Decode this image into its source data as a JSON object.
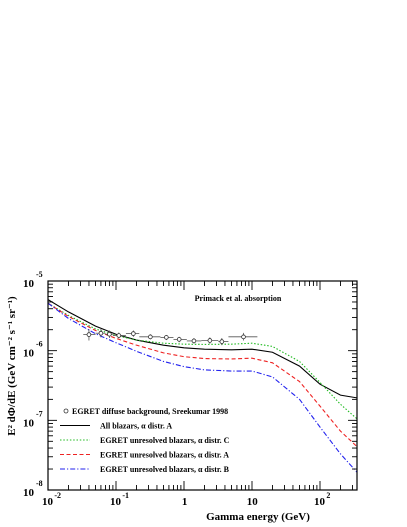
{
  "chart_data": {
    "type": "line",
    "title": "",
    "xlabel": "Gamma energy (GeV)",
    "ylabel": "E² dΦ/dE (GeV cm⁻² s⁻¹ sr⁻¹)",
    "xscale": "log",
    "yscale": "log",
    "xlim": [
      0.01,
      350
    ],
    "ylim": [
      1e-08,
      1e-05
    ],
    "annotation": "Primack et al. absorption",
    "x_ticks": [
      {
        "base": "10",
        "exp": "-2",
        "value": 0.01
      },
      {
        "base": "10",
        "exp": "-1",
        "value": 0.1
      },
      {
        "base": "1",
        "exp": "",
        "value": 1
      },
      {
        "base": "10",
        "exp": "",
        "value": 10
      },
      {
        "base": "10",
        "exp": "2",
        "value": 100
      }
    ],
    "y_ticks": [
      {
        "base": "10",
        "exp": "-8",
        "value": 1e-08
      },
      {
        "base": "10",
        "exp": "-7",
        "value": 1e-07
      },
      {
        "base": "10",
        "exp": "-6",
        "value": 1e-06
      },
      {
        "base": "10",
        "exp": "-5",
        "value": 1e-05
      }
    ],
    "egret": {
      "name": "EGRET diffuse background, Sreekumar 1998",
      "points": [
        {
          "x": 0.04,
          "y": 1.7e-06,
          "xerr": [
            0.033,
            0.05
          ],
          "yerr": [
            1.4e-06,
            2.05e-06
          ]
        },
        {
          "x": 0.06,
          "y": 1.78e-06,
          "xerr": [
            0.05,
            0.07
          ],
          "yerr": [
            1.55e-06,
            2.05e-06
          ]
        },
        {
          "x": 0.08,
          "y": 1.72e-06,
          "xerr": [
            0.07,
            0.09
          ],
          "yerr": [
            1.52e-06,
            1.95e-06
          ]
        },
        {
          "x": 0.11,
          "y": 1.65e-06,
          "xerr": [
            0.09,
            0.14
          ],
          "yerr": [
            1.5e-06,
            1.82e-06
          ]
        },
        {
          "x": 0.18,
          "y": 1.76e-06,
          "xerr": [
            0.14,
            0.22
          ],
          "yerr": [
            1.58e-06,
            1.95e-06
          ]
        },
        {
          "x": 0.32,
          "y": 1.58e-06,
          "xerr": [
            0.22,
            0.45
          ],
          "yerr": [
            1.45e-06,
            1.72e-06
          ]
        },
        {
          "x": 0.55,
          "y": 1.55e-06,
          "xerr": [
            0.45,
            0.7
          ],
          "yerr": [
            1.42e-06,
            1.68e-06
          ]
        },
        {
          "x": 0.85,
          "y": 1.45e-06,
          "xerr": [
            0.7,
            1.1
          ],
          "yerr": [
            1.32e-06,
            1.58e-06
          ]
        },
        {
          "x": 1.4,
          "y": 1.38e-06,
          "xerr": [
            1.1,
            1.8
          ],
          "yerr": [
            1.26e-06,
            1.52e-06
          ]
        },
        {
          "x": 2.4,
          "y": 1.4e-06,
          "xerr": [
            1.8,
            3.2
          ],
          "yerr": [
            1.26e-06,
            1.55e-06
          ]
        },
        {
          "x": 3.6,
          "y": 1.35e-06,
          "xerr": [
            3.2,
            4.5
          ],
          "yerr": [
            1.2e-06,
            1.52e-06
          ]
        },
        {
          "x": 7.5,
          "y": 1.58e-06,
          "xerr": [
            4.5,
            12.0
          ],
          "yerr": [
            1.4e-06,
            1.8e-06
          ]
        }
      ]
    },
    "series": [
      {
        "name": "All blazars, α distr. A",
        "color": "#000000",
        "dash": "solid",
        "x": [
          0.01,
          0.02,
          0.05,
          0.1,
          0.2,
          0.5,
          1,
          2,
          5,
          10,
          20,
          50,
          100,
          200,
          350
        ],
        "y": [
          5.4e-06,
          3.6e-06,
          2.25e-06,
          1.72e-06,
          1.42e-06,
          1.2e-06,
          1.1e-06,
          1.05e-06,
          1.03e-06,
          1.05e-06,
          9.5e-07,
          6e-07,
          3.3e-07,
          2.3e-07,
          2.1e-07
        ]
      },
      {
        "name": "EGRET unresolved blazars, α distr. C",
        "color": "#22bb22",
        "dash": "dotted",
        "x": [
          0.01,
          0.02,
          0.05,
          0.1,
          0.2,
          0.5,
          1,
          2,
          5,
          10,
          20,
          50,
          100,
          200,
          350
        ],
        "y": [
          4.8e-06,
          3.2e-06,
          2.05e-06,
          1.65e-06,
          1.42e-06,
          1.28e-06,
          1.24e-06,
          1.23e-06,
          1.24e-06,
          1.28e-06,
          1.15e-06,
          7e-07,
          3.5e-07,
          1.7e-07,
          1.05e-07
        ]
      },
      {
        "name": "EGRET unresolved blazars, α distr. A",
        "color": "#ee2222",
        "dash": "dashed",
        "x": [
          0.01,
          0.02,
          0.05,
          0.1,
          0.2,
          0.5,
          1,
          2,
          5,
          10,
          20,
          50,
          100,
          200,
          350
        ],
        "y": [
          4.8e-06,
          3.1e-06,
          1.95e-06,
          1.5e-06,
          1.2e-06,
          9.3e-07,
          8.2e-07,
          7.7e-07,
          7.6e-07,
          7.8e-07,
          6.7e-07,
          3.6e-07,
          1.6e-07,
          7e-08,
          4.2e-08
        ]
      },
      {
        "name": "EGRET unresolved blazars, α distr. B",
        "color": "#2222ee",
        "dash": "dashdot",
        "x": [
          0.01,
          0.02,
          0.05,
          0.1,
          0.2,
          0.5,
          1,
          2,
          5,
          10,
          20,
          50,
          100,
          200,
          350
        ],
        "y": [
          4.8e-06,
          2.9e-06,
          1.75e-06,
          1.3e-06,
          9.8e-07,
          7e-07,
          5.9e-07,
          5.3e-07,
          5.1e-07,
          5.1e-07,
          4.2e-07,
          2e-07,
          8e-08,
          3.3e-08,
          1.8e-08
        ]
      }
    ],
    "legend_position": "bottom-left",
    "grid": false
  }
}
